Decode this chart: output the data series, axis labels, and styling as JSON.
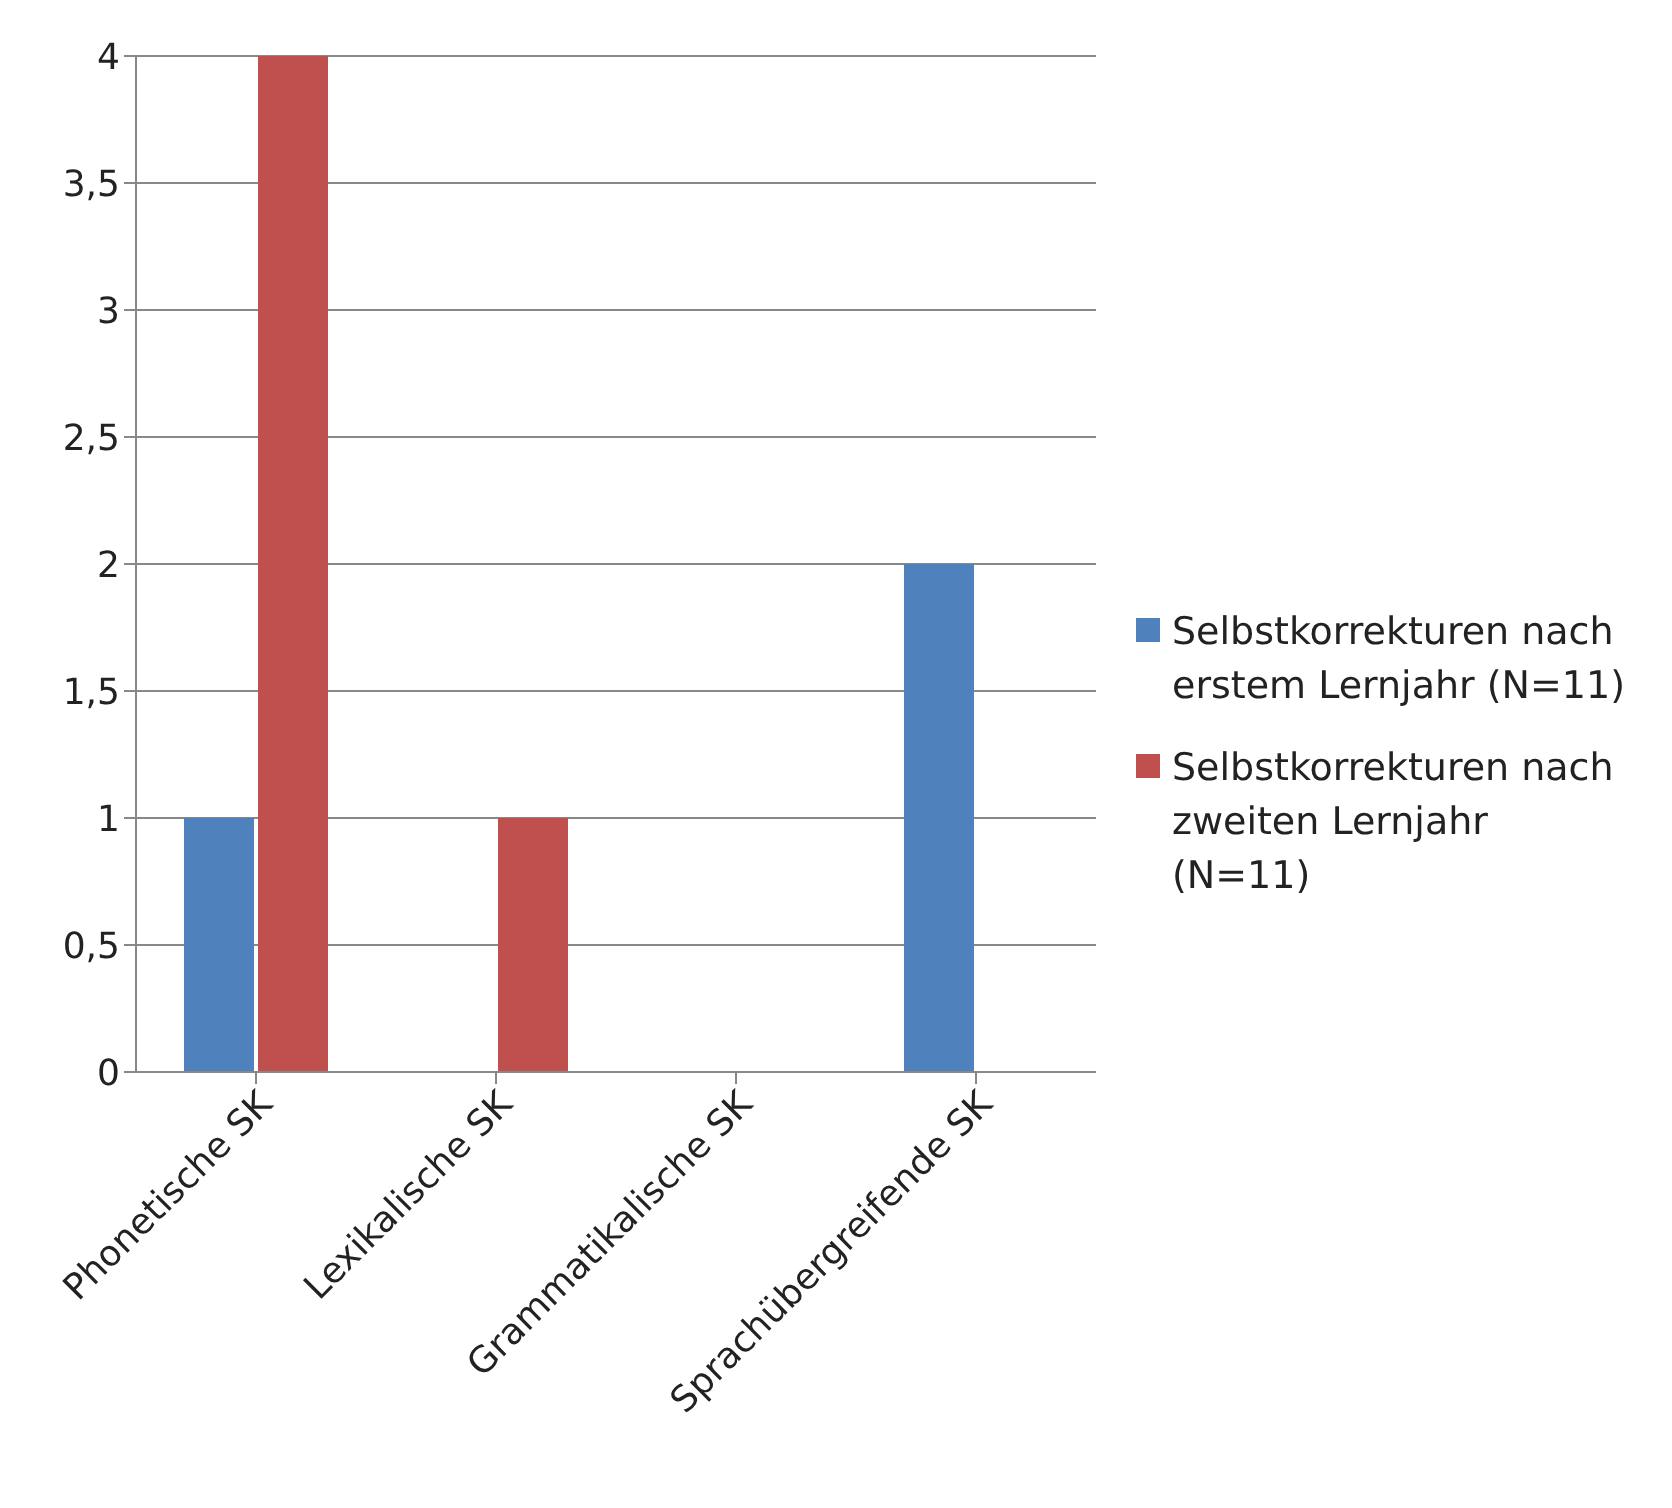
{
  "chart_data": {
    "type": "bar",
    "categories": [
      "Phonetische SK",
      "Lexikalische SK",
      "Grammatikalische SK",
      "Sprachübergreifende SK"
    ],
    "series": [
      {
        "name": "Selbstkorrekturen nach erstem Lernjahr (N=11)",
        "color": "#4f81bd",
        "values": [
          1,
          0,
          0,
          2
        ]
      },
      {
        "name": "Selbstkorrekturen nach zweiten Lernjahr (N=11)",
        "color": "#c0504d",
        "values": [
          4,
          1,
          0,
          0
        ]
      }
    ],
    "ylim": [
      0,
      4
    ],
    "yticks": [
      0,
      {
        "value": 0.5,
        "label": "0,5"
      },
      1,
      {
        "value": 1.5,
        "label": "1,5"
      },
      2,
      {
        "value": 2.5,
        "label": "2,5"
      },
      3,
      {
        "value": 3.5,
        "label": "3,5"
      },
      4
    ],
    "grid": "y",
    "legend": "right"
  }
}
